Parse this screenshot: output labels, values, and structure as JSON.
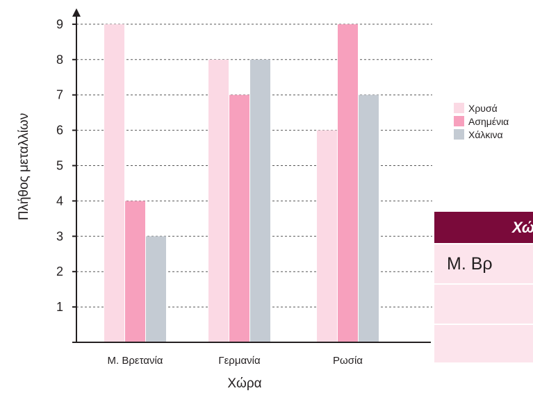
{
  "chart_data": {
    "type": "bar",
    "categories": [
      "Μ. Βρετανία",
      "Γερμανία",
      "Ρωσία"
    ],
    "series": [
      {
        "name": "Χρυσά",
        "values": [
          9,
          8,
          6
        ],
        "color": "#fbd9e4"
      },
      {
        "name": "Ασημένια",
        "values": [
          4,
          7,
          9
        ],
        "color": "#f7a0bd"
      },
      {
        "name": "Χάλκινα",
        "values": [
          3,
          8,
          7
        ],
        "color": "#c4cbd3"
      }
    ],
    "title": "",
    "xlabel": "Χώρα",
    "ylabel": "Πλήθος μεταλλίων",
    "ylim": [
      0,
      9
    ],
    "yticks": [
      1,
      2,
      3,
      4,
      5,
      6,
      7,
      8,
      9
    ],
    "grid": "dashed-horizontal",
    "legend_position": "right"
  },
  "table": {
    "header": "Χώ",
    "rows": [
      "Μ. Βρ",
      "",
      ""
    ],
    "header_color": "#7a0a3a",
    "row_color": "#fce4ec"
  }
}
